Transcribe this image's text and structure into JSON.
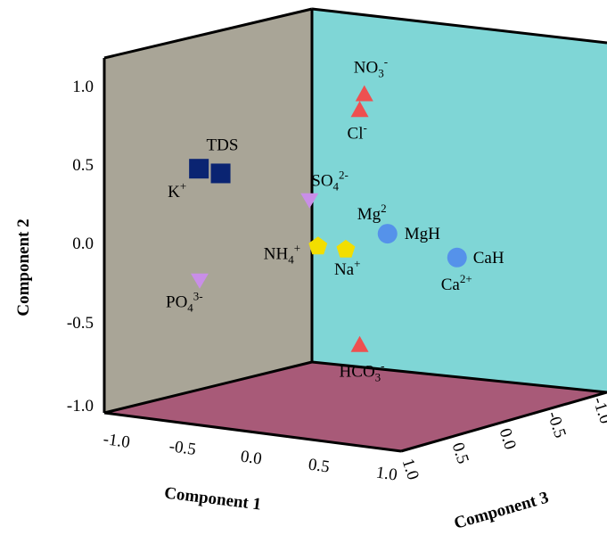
{
  "chart_data": {
    "type": "scatter",
    "projection": "3d",
    "xlabel": "Component 1",
    "ylabel": "Component 2",
    "zlabel": "Component 3",
    "ylim": [
      -1.0,
      1.0
    ],
    "xlim": [
      -1.0,
      1.0
    ],
    "zlim": [
      -1.0,
      1.0
    ],
    "y_ticks": [
      "1.0",
      "0.5",
      "0.0",
      "-0.5",
      "-1.0"
    ],
    "x_ticks": [
      "-1.0",
      "-0.5",
      "0.0",
      "0.5",
      "1.0"
    ],
    "z_ticks": [
      "1.0",
      "0.5",
      "0.0",
      "-0.5",
      "-1.0"
    ],
    "colors": {
      "back_wall": "#7fd6d6",
      "side_wall": "#a9a597",
      "floor": "#a85a78"
    },
    "points": [
      {
        "label": "NO3-",
        "label_main": "NO",
        "label_sub": "3",
        "label_sup": "-",
        "marker": "triangle-up",
        "color": "#ee5050",
        "x": 0.3,
        "y": 0.98,
        "z": 0.55
      },
      {
        "label": "Cl-",
        "label_main": "Cl",
        "label_sub": "",
        "label_sup": "-",
        "marker": "triangle-up",
        "color": "#ee5050",
        "x": 0.28,
        "y": 0.88,
        "z": 0.55
      },
      {
        "label": "TDS",
        "label_main": "TDS",
        "label_sub": "",
        "label_sup": "",
        "marker": "square",
        "color": "#0a2472",
        "x": -0.32,
        "y": 0.48,
        "z": 0.55
      },
      {
        "label": "K+",
        "label_main": "K",
        "label_sub": "",
        "label_sup": "+",
        "marker": "square",
        "color": "#0a2472",
        "x": -0.36,
        "y": 0.55,
        "z": 0.95
      },
      {
        "label": "SO42-",
        "label_main": "SO",
        "label_sub": "4",
        "label_sup": "2-",
        "marker": "triangle-down",
        "color": "#c98ee8",
        "x": 0.05,
        "y": 0.3,
        "z": 0.45
      },
      {
        "label": "Mg2+",
        "label_main": "Mg",
        "label_sub": "",
        "label_sup": "2",
        "marker": "circle",
        "color": "#5592ea",
        "x": 0.4,
        "y": 0.1,
        "z": 0.55
      },
      {
        "label": "MgH",
        "label_main": "MgH",
        "label_sub": "",
        "label_sup": "",
        "marker": "circle",
        "color": "#5592ea",
        "x": 0.4,
        "y": 0.1,
        "z": 0.55
      },
      {
        "label": "NH4+",
        "label_main": "NH",
        "label_sub": "4",
        "label_sup": "+",
        "marker": "pentagon",
        "color": "#f2de00",
        "x": 0.1,
        "y": 0.02,
        "z": 0.55
      },
      {
        "label": "Na+",
        "label_main": "Na",
        "label_sub": "",
        "label_sup": "+",
        "marker": "pentagon",
        "color": "#f2de00",
        "x": 0.22,
        "y": 0.0,
        "z": 0.55
      },
      {
        "label": "CaH",
        "label_main": "CaH",
        "label_sub": "",
        "label_sup": "",
        "marker": "circle",
        "color": "#5592ea",
        "x": 0.7,
        "y": -0.05,
        "z": 0.55
      },
      {
        "label": "Ca2+",
        "label_main": "Ca",
        "label_sub": "",
        "label_sup": "2+",
        "marker": "circle",
        "color": "#5592ea",
        "x": 0.7,
        "y": -0.05,
        "z": 0.55
      },
      {
        "label": "PO43-",
        "label_main": "PO",
        "label_sub": "4",
        "label_sup": "3-",
        "marker": "triangle-down",
        "color": "#c98ee8",
        "x": -0.35,
        "y": -0.15,
        "z": 1.0
      },
      {
        "label": "HCO3-",
        "label_main": "HCO",
        "label_sub": "3",
        "label_sup": "-",
        "marker": "triangle-up",
        "color": "#ee5050",
        "x": 0.28,
        "y": -0.6,
        "z": 0.55
      }
    ]
  }
}
